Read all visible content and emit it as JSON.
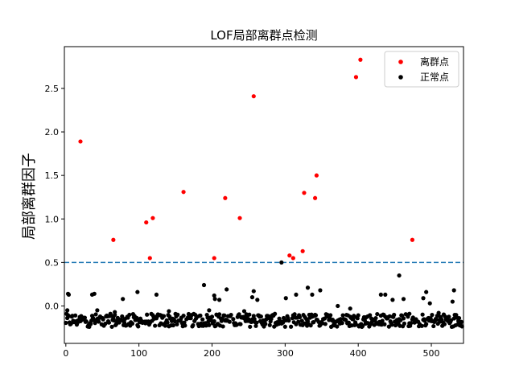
{
  "chart_data": {
    "type": "scatter",
    "title": "LOF局部离群点检测",
    "xlabel": "",
    "ylabel": "局部离群因子",
    "xlim": [
      -2,
      544
    ],
    "ylim": [
      -0.43,
      2.98
    ],
    "xticks": [
      0,
      100,
      200,
      300,
      400,
      500
    ],
    "yticks": [
      0.0,
      0.5,
      1.0,
      1.5,
      2.0,
      2.5
    ],
    "ytick_labels": [
      "0.0",
      "0.5",
      "1.0",
      "1.5",
      "2.0",
      "2.5"
    ],
    "xtick_labels": [
      "0",
      "100",
      "200",
      "300",
      "400",
      "500"
    ],
    "threshold": 0.5,
    "threshold_color": "#1f77b4",
    "legend_position": "top-right",
    "grid": false,
    "series": [
      {
        "name": "离群点",
        "color": "#ff0000",
        "points": [
          [
            20,
            1.89
          ],
          [
            65,
            0.76
          ],
          [
            110,
            0.96
          ],
          [
            115,
            0.55
          ],
          [
            119,
            1.01
          ],
          [
            161,
            1.31
          ],
          [
            203,
            0.55
          ],
          [
            218,
            1.24
          ],
          [
            238,
            1.01
          ],
          [
            257,
            2.41
          ],
          [
            306,
            0.58
          ],
          [
            311,
            0.55
          ],
          [
            324,
            0.63
          ],
          [
            326,
            1.3
          ],
          [
            341,
            1.24
          ],
          [
            343,
            1.5
          ],
          [
            397,
            2.63
          ],
          [
            403,
            2.83
          ],
          [
            474,
            0.76
          ]
        ]
      },
      {
        "name": "正常点",
        "color": "#000000",
        "points": [
          [
            2,
            -0.05
          ],
          [
            3,
            0.14
          ],
          [
            4,
            0.13
          ],
          [
            36,
            0.13
          ],
          [
            39,
            0.14
          ],
          [
            43,
            -0.05
          ],
          [
            78,
            0.08
          ],
          [
            98,
            0.16
          ],
          [
            124,
            0.13
          ],
          [
            189,
            0.24
          ],
          [
            203,
            0.12
          ],
          [
            204,
            0.08
          ],
          [
            210,
            0.07
          ],
          [
            220,
            0.19
          ],
          [
            255,
            0.1
          ],
          [
            257,
            0.17
          ],
          [
            262,
            0.07
          ],
          [
            295,
            0.5
          ],
          [
            301,
            0.09
          ],
          [
            315,
            0.13
          ],
          [
            331,
            0.21
          ],
          [
            337,
            0.13
          ],
          [
            348,
            0.18
          ],
          [
            431,
            0.13
          ],
          [
            437,
            0.13
          ],
          [
            447,
            0.07
          ],
          [
            456,
            0.35
          ],
          [
            462,
            0.08
          ],
          [
            489,
            0.09
          ],
          [
            493,
            0.16
          ],
          [
            498,
            0.03
          ],
          [
            529,
            0.05
          ],
          [
            531,
            0.18
          ],
          [
            372,
            0.0
          ],
          [
            389,
            -0.03
          ],
          [
            196,
            -0.05
          ],
          [
            141,
            -0.06
          ],
          [
            67,
            -0.07
          ],
          [
            244,
            -0.06
          ],
          [
            510,
            -0.08
          ],
          [
            470,
            -0.09
          ]
        ]
      }
    ]
  }
}
